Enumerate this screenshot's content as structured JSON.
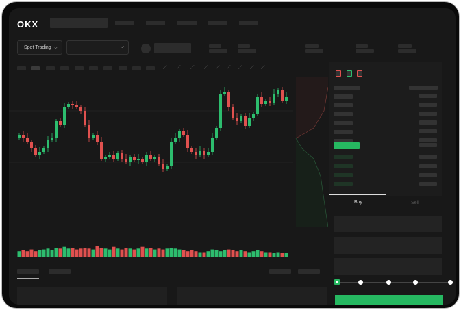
{
  "brand": {
    "logo": "OKX"
  },
  "selectors": {
    "market_type": "Spot Trading",
    "pair": ""
  },
  "order_form": {
    "tabs": [
      "Buy",
      "Sell"
    ],
    "active_tab": "Buy",
    "slider_value_percent": 0,
    "slider_stops": 5
  },
  "colors": {
    "up": "#2dbd6e",
    "down": "#e0514f",
    "background": "#181818",
    "accent": "#26b861"
  },
  "icons": [
    "chevron-down-icon",
    "orderbook-both-icon",
    "orderbook-bids-icon",
    "orderbook-asks-icon",
    "indicator-icon",
    "draw-icon"
  ],
  "chart_data": {
    "type": "candlestick",
    "close": [
      95,
      90,
      85,
      75,
      65,
      70,
      75,
      88,
      90,
      115,
      110,
      135,
      140,
      138,
      135,
      130,
      110,
      90,
      95,
      85,
      60,
      62,
      65,
      60,
      68,
      60,
      55,
      62,
      58,
      60,
      55,
      65,
      60,
      62,
      52,
      45,
      50,
      85,
      90,
      100,
      95,
      75,
      70,
      65,
      72,
      65,
      70,
      90,
      105,
      155,
      158,
      135,
      120,
      115,
      122,
      108,
      120,
      125,
      150,
      140,
      145,
      142,
      155,
      160,
      145,
      150
    ],
    "volume": [
      6,
      7,
      6,
      8,
      6,
      7,
      8,
      9,
      7,
      10,
      9,
      11,
      9,
      10,
      8,
      9,
      10,
      9,
      8,
      12,
      10,
      9,
      8,
      11,
      9,
      8,
      10,
      9,
      8,
      9,
      11,
      9,
      10,
      8,
      9,
      8,
      9,
      10,
      9,
      8,
      7,
      6,
      7,
      6,
      5,
      5,
      6,
      8,
      7,
      6,
      7,
      8,
      7,
      6,
      7,
      6,
      5,
      6,
      7,
      6,
      5,
      5,
      4,
      5,
      4,
      4
    ]
  }
}
